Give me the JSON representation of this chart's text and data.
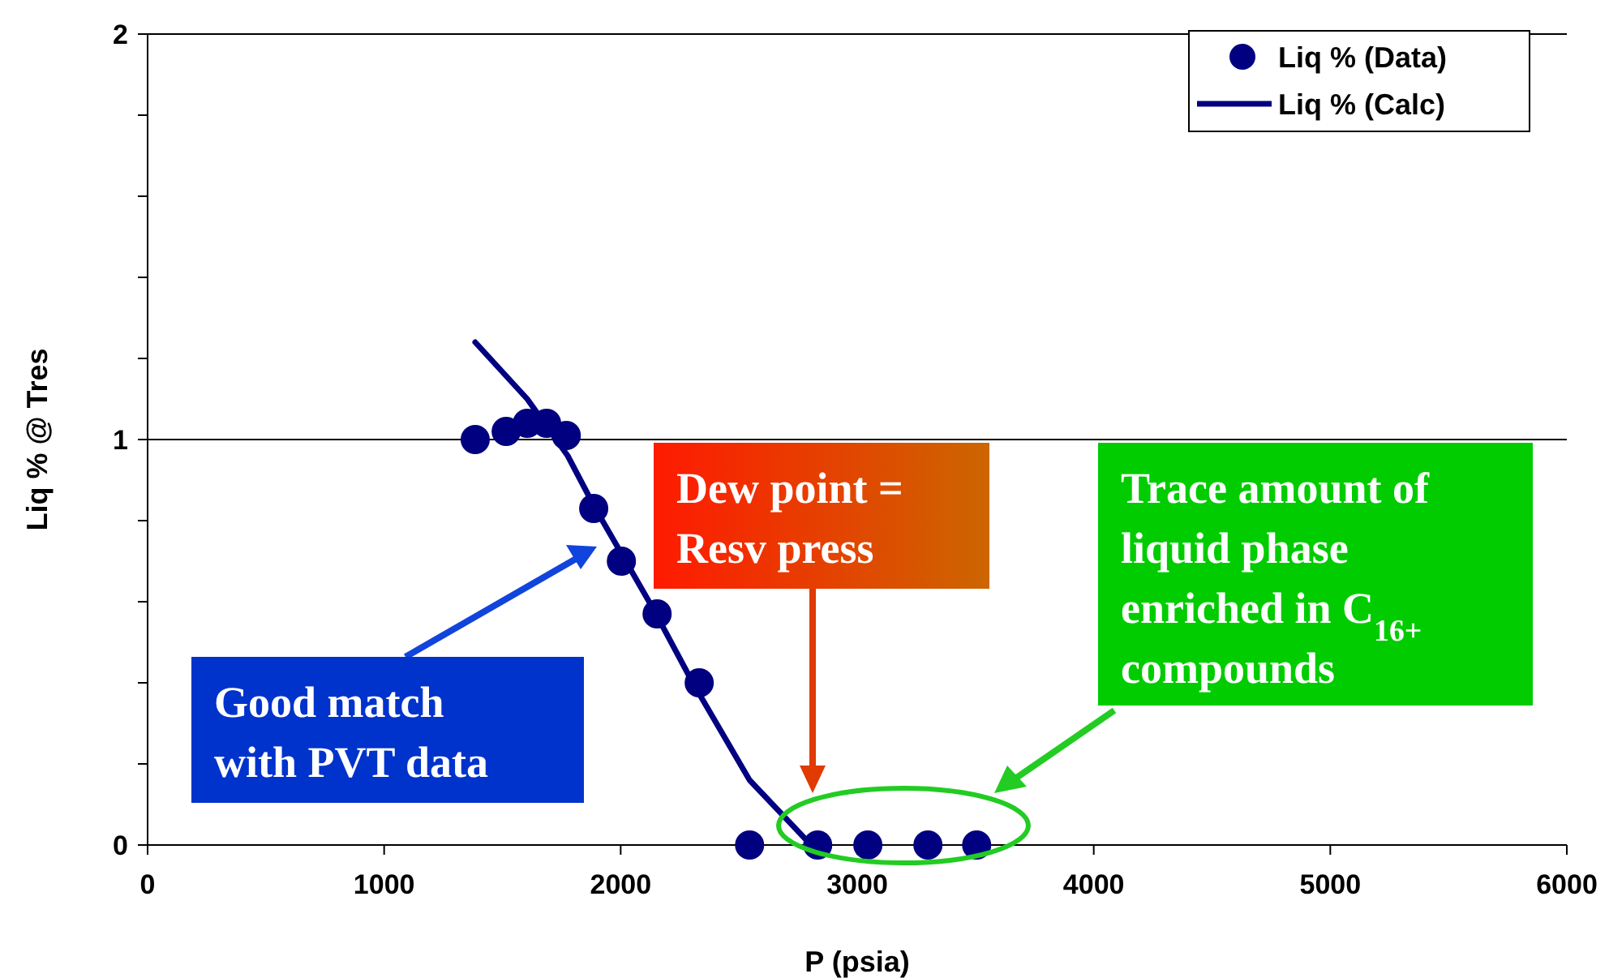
{
  "chart_data": {
    "type": "scatter",
    "xlabel": "P (psia)",
    "ylabel": "Liq % @ Tres",
    "xlim": [
      0,
      6000
    ],
    "xticks": [
      0,
      1000,
      2000,
      3000,
      4000,
      5000,
      6000
    ],
    "ylim": [
      0,
      2
    ],
    "yticks": [
      0,
      {
        "value": 0.2,
        "label": null
      },
      {
        "value": 0.4,
        "label": null
      },
      {
        "value": 0.6,
        "label": null
      },
      {
        "value": 0.8,
        "label": null
      },
      1,
      {
        "value": 1.2,
        "label": null
      },
      {
        "value": 1.4,
        "label": null
      },
      {
        "value": 1.6,
        "label": null
      },
      {
        "value": 1.8,
        "label": null
      },
      2
    ],
    "grid": "y",
    "legend": "top right",
    "series": [
      {
        "name": "Liq % (Data)",
        "marker": "circle",
        "color": "#000080",
        "x": [
          1385,
          1516,
          1605,
          1687,
          1770,
          1886,
          2003,
          2154,
          2332,
          2545,
          2833,
          3045,
          3299,
          3505
        ],
        "values": [
          1.0,
          1.02,
          1.04,
          1.04,
          1.01,
          0.83,
          0.7,
          0.57,
          0.4,
          0,
          0,
          0,
          0,
          0
        ]
      },
      {
        "name": "Liq % (Calc)",
        "type": "line",
        "marker": "none",
        "line_style": "solid",
        "color": "#000080",
        "x": [
          1385,
          1605,
          1776,
          1893,
          2140,
          2305,
          2545,
          2805
        ],
        "values": [
          1.24,
          1.1,
          0.96,
          0.83,
          0.58,
          0.4,
          0.16,
          0
        ]
      }
    ],
    "annotations": [
      "Good match with PVT data",
      "Dew point = Resv press",
      "Trace amount of liquid phase enriched in C$_{16+}$ compounds"
    ]
  }
}
